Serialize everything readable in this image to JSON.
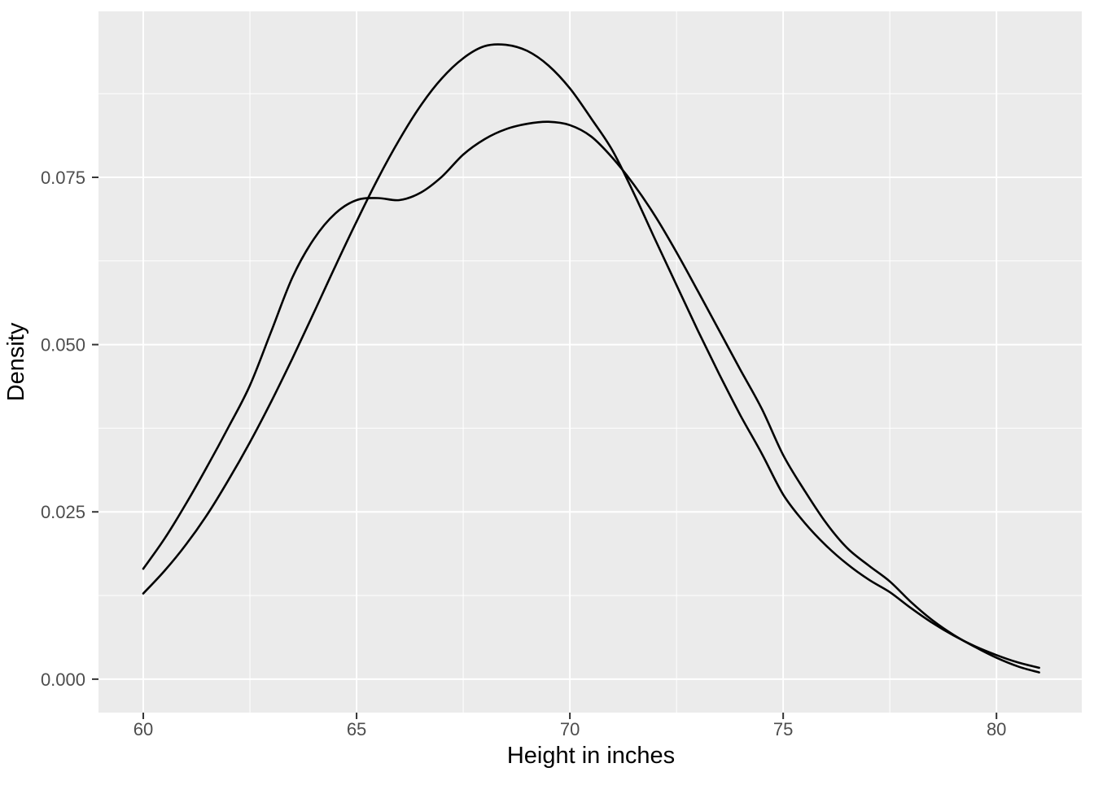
{
  "figure": {
    "background": "#FFFFFF",
    "panel_bg": "#EBEBEB",
    "grid_color": "#FFFFFF",
    "tick_mark_color": "#333333",
    "tick_label_color": "#4D4D4D",
    "axis_title_color": "#000000",
    "curve_color": "#000000"
  },
  "chart_data": {
    "type": "line",
    "title": "",
    "xlabel": "Height in inches",
    "ylabel": "Density",
    "legend": "none",
    "grid": true,
    "xlim": [
      58.95,
      82.0
    ],
    "ylim": [
      -0.005,
      0.0998
    ],
    "x_tick_values": [
      60,
      65,
      70,
      75,
      80
    ],
    "x_tick_labels": [
      "60",
      "65",
      "70",
      "75",
      "80"
    ],
    "x_minor_values": [
      62.5,
      67.5,
      72.5,
      77.5
    ],
    "y_tick_values": [
      0,
      0.025,
      0.05,
      0.075
    ],
    "y_tick_labels": [
      "0.000",
      "0.025",
      "0.050",
      "0.075"
    ],
    "y_minor_values": [
      0.0125,
      0.0375,
      0.0625,
      0.0875
    ],
    "series": [
      {
        "name": "shouldered-density-curve",
        "description": "density curve with shoulder near 65.5 and peak at 69.5",
        "x": [
          60,
          60.5,
          61,
          61.5,
          62,
          62.5,
          63,
          63.5,
          64,
          64.5,
          65,
          65.5,
          66,
          66.5,
          67,
          67.5,
          68,
          68.5,
          69,
          69.5,
          70,
          70.5,
          71,
          71.5,
          72,
          72.5,
          73,
          73.5,
          74,
          74.5,
          75,
          75.5,
          76,
          76.5,
          77,
          77.5,
          78,
          78.5,
          79,
          79.5,
          80,
          80.5,
          81
        ],
        "y": [
          0.0165,
          0.021,
          0.0262,
          0.0318,
          0.0377,
          0.0439,
          0.052,
          0.0601,
          0.0658,
          0.0696,
          0.0716,
          0.0719,
          0.0716,
          0.0727,
          0.0751,
          0.0784,
          0.0807,
          0.0822,
          0.083,
          0.0833,
          0.0828,
          0.0811,
          0.0779,
          0.0739,
          0.0692,
          0.0638,
          0.058,
          0.0521,
          0.0462,
          0.0404,
          0.0335,
          0.0282,
          0.0234,
          0.0196,
          0.017,
          0.0146,
          0.0115,
          0.0088,
          0.0066,
          0.0048,
          0.0032,
          0.0019,
          0.001
        ]
      },
      {
        "name": "unimodal-density-curve",
        "description": "taller bell-shaped density curve peaking near 68.4",
        "x": [
          60,
          60.5,
          61,
          61.5,
          62,
          62.5,
          63,
          63.5,
          64,
          64.5,
          65,
          65.5,
          66,
          66.5,
          67,
          67.5,
          68,
          68.5,
          69,
          69.5,
          70,
          70.5,
          71,
          71.5,
          72,
          72.5,
          73,
          73.5,
          74,
          74.5,
          75,
          75.5,
          76,
          76.5,
          77,
          77.5,
          78,
          78.5,
          79,
          79.5,
          80,
          80.5,
          81
        ],
        "y": [
          0.0128,
          0.0162,
          0.0201,
          0.0246,
          0.0298,
          0.0354,
          0.0415,
          0.048,
          0.0548,
          0.0617,
          0.0684,
          0.0748,
          0.0806,
          0.0857,
          0.0898,
          0.0928,
          0.0946,
          0.0948,
          0.0939,
          0.0917,
          0.0883,
          0.0838,
          0.079,
          0.0726,
          0.0657,
          0.0589,
          0.0521,
          0.0456,
          0.0394,
          0.0337,
          0.0276,
          0.0234,
          0.02,
          0.0172,
          0.0149,
          0.013,
          0.0106,
          0.0084,
          0.0065,
          0.0049,
          0.0036,
          0.0025,
          0.0017
        ]
      }
    ]
  }
}
